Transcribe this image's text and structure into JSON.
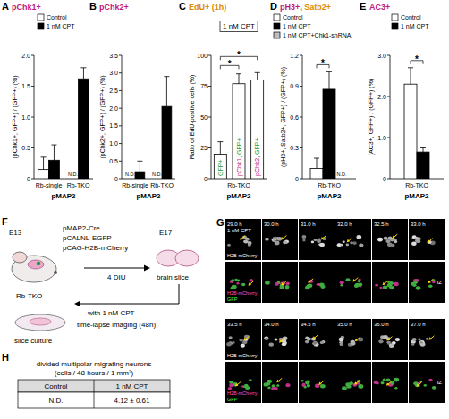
{
  "panel_labels": [
    "A",
    "B",
    "C",
    "D",
    "E",
    "F",
    "G",
    "H"
  ],
  "chart_data": [
    {
      "type": "bar",
      "title": "pChk1+",
      "categories": [
        "Rb-single",
        "Rb-TKO"
      ],
      "x_label": "pMAP2",
      "y_label": "(pChk1+, GFP+) / (GFP+) (%)",
      "series": [
        {
          "name": "Control",
          "color": "#ffffff",
          "values": [
            0.15,
            null
          ],
          "errors": [
            0.2,
            null
          ],
          "value_labels": [
            null,
            "N.D."
          ]
        },
        {
          "name": "1 nM CPT",
          "color": "#000000",
          "values": [
            0.3,
            1.62
          ],
          "errors": [
            0.25,
            0.18
          ]
        }
      ],
      "ylim": [
        0,
        2
      ],
      "yticks": [
        0,
        0.5,
        {
          "value": 1,
          "label": "1.0"
        },
        1.5,
        {
          "value": 2,
          "label": "2.0"
        }
      ],
      "legend": "top"
    },
    {
      "type": "bar",
      "title": "pChk2+",
      "categories": [
        "Rb-single",
        "Rb-TKO"
      ],
      "x_label": "pMAP2",
      "y_label": "(pChk2+, GFP+) / (GFP+) (%)",
      "series": [
        {
          "name": "Control",
          "color": "#ffffff",
          "values": [
            null,
            null
          ],
          "value_labels": [
            "N.D.",
            "N.D."
          ]
        },
        {
          "name": "1 nM CPT",
          "color": "#000000",
          "values": [
            0.2,
            2.05
          ],
          "errors": [
            0.3,
            0.85
          ]
        }
      ],
      "ylim": [
        0,
        3.5
      ],
      "yticks": [
        0,
        0.5,
        {
          "value": 1,
          "label": "1.0"
        },
        1.5,
        {
          "value": 2,
          "label": "2.0"
        },
        2.5,
        {
          "value": 3,
          "label": "3.0"
        },
        3.5
      ]
    },
    {
      "type": "bar",
      "title": "EdU+ (1h)",
      "subtitle": "1 nM CPT",
      "categories": [
        "GFP+",
        "pChk1, GFP+",
        "pChk2, GFP+"
      ],
      "group_label": "Rb-TKO",
      "x_label": "pMAP2",
      "y_label": "Ratio of EdU-positive cells (%)",
      "values": [
        20,
        77,
        80
      ],
      "errors": [
        10,
        8,
        6
      ],
      "color": "#ffffff",
      "ylim": [
        0,
        100
      ],
      "yticks": [
        0,
        25,
        50,
        75,
        100
      ],
      "brackets": [
        {
          "from": "GFP+",
          "to": "pChk1, GFP+",
          "label": "*"
        },
        {
          "from": "GFP+",
          "to": "pChk2, GFP+",
          "label": "*"
        }
      ]
    },
    {
      "type": "bar",
      "title": "pH3+, Satb2+",
      "categories": [
        "Rb-TKO"
      ],
      "x_label": "pMAP2",
      "y_label": "(pH3+, Satb2+, GFP+) / (GFP+) (%)",
      "series": [
        {
          "name": "Control",
          "color": "#ffffff",
          "values": [
            0.1
          ],
          "errors": [
            0.1
          ]
        },
        {
          "name": "1 nM CPT",
          "color": "#000000",
          "values": [
            0.87
          ],
          "errors": [
            0.17
          ]
        },
        {
          "name": "1 nM CPT+Chk1-shRNA",
          "color": "#bdbdbd",
          "values": [
            null
          ],
          "value_labels": [
            "N.D."
          ]
        }
      ],
      "ylim": [
        0,
        1.2
      ],
      "yticks": [
        0,
        0.3,
        0.6,
        0.9,
        1.2
      ],
      "legend": "top",
      "brackets": [
        {
          "from": "Control",
          "to": "1 nM CPT",
          "label": "*"
        }
      ]
    },
    {
      "type": "bar",
      "title": "AC3+",
      "categories": [
        "Rb-TKO"
      ],
      "x_label": "pMAP2",
      "y_label": "(AC3+, GFP+) / (GFP+) (%)",
      "series": [
        {
          "name": "Control",
          "color": "#ffffff",
          "values": [
            2.3
          ],
          "errors": [
            0.4
          ]
        },
        {
          "name": "1 nM CPT",
          "color": "#000000",
          "values": [
            0.65
          ],
          "errors": [
            0.1
          ]
        }
      ],
      "ylim": [
        0,
        3
      ],
      "yticks": [
        0,
        {
          "value": 1,
          "label": "1.0"
        },
        {
          "value": 2,
          "label": "2.0"
        },
        {
          "value": 3,
          "label": "3.0"
        }
      ],
      "legend": "top",
      "brackets": [
        {
          "from": "Control",
          "to": "1 nM CPT",
          "label": "*"
        }
      ]
    }
  ],
  "scheme": {
    "stage_start": "E13",
    "plasmids": [
      "pMAP2-Cre",
      "pCALNL-EGFP",
      "pCAG-H2B-mCherry"
    ],
    "genotype": "Rb-TKO",
    "stage_end": "E17",
    "interval": "4 DIU",
    "slice": "brain slice",
    "culture": "slice culture",
    "treatment": "with 1 nM CPT",
    "imaging": "time-lapse imaging (48h)"
  },
  "time_lapse": {
    "condition": "1 nM CPT",
    "rows": [
      {
        "times": [
          "29.0 h",
          "30.0 h",
          "31.0 h",
          "32.0 h",
          "32.5 h",
          "33.0 h"
        ]
      },
      {
        "times": [
          "33.5 h",
          "34.0 h",
          "34.5 h",
          "35.0 h",
          "36.0 h",
          "37.0 h"
        ]
      }
    ],
    "channels": {
      "single": "H2B-mCherry",
      "merge": [
        "H2B-mCherry",
        "GFP"
      ]
    },
    "zone": "IZ"
  },
  "table": {
    "title": [
      "divided multipolar migrating neurons",
      "(cells / 48 hours / 1 mm²)"
    ],
    "header": [
      "Control",
      "1 nM CPT"
    ],
    "rows": [
      [
        "N.D.",
        "4.12 ± 0.61"
      ]
    ]
  }
}
